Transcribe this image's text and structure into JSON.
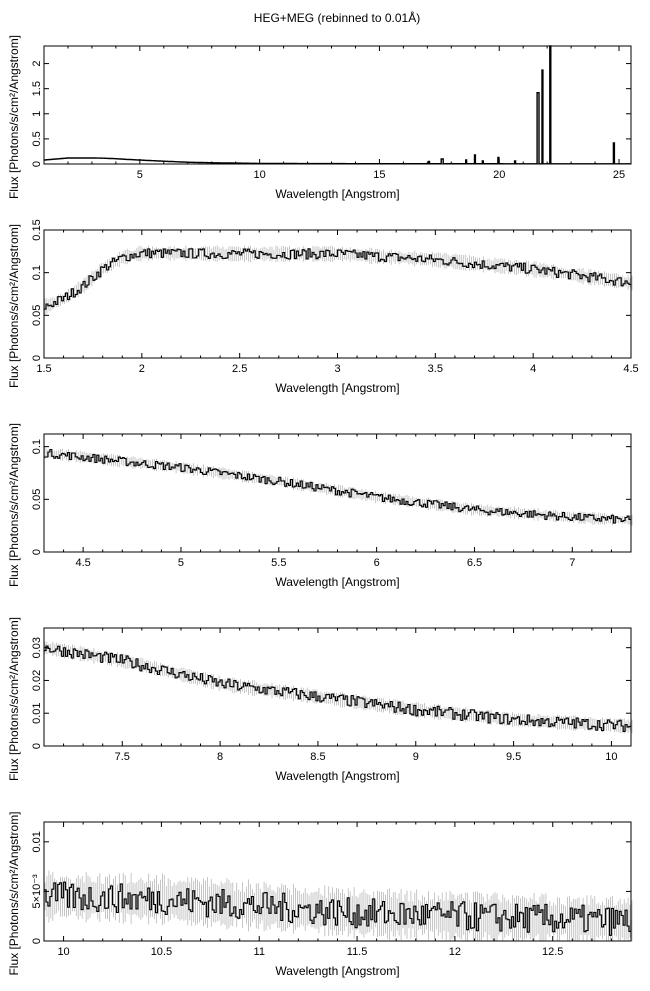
{
  "figure": {
    "title": "HEG+MEG (rebinned to 0.01Å)"
  },
  "chart_data": [
    {
      "type": "histogram",
      "xlabel": "Wavelength [Angstrom]",
      "ylabel": "Flux [Photons/s/cm²/Angstrom]",
      "xlim": [
        1.0,
        25.5
      ],
      "ylim": [
        0,
        2.35
      ],
      "xticks": [
        5,
        10,
        15,
        20,
        25
      ],
      "yticks": [
        0,
        0.5,
        1,
        1.5,
        2
      ],
      "continuum": [
        [
          1.0,
          0.08
        ],
        [
          1.5,
          0.1
        ],
        [
          2.0,
          0.12
        ],
        [
          2.5,
          0.12
        ],
        [
          3.0,
          0.12
        ],
        [
          3.5,
          0.115
        ],
        [
          4.0,
          0.105
        ],
        [
          4.5,
          0.09
        ],
        [
          5.0,
          0.078
        ],
        [
          6.0,
          0.055
        ],
        [
          7.0,
          0.035
        ],
        [
          8.0,
          0.025
        ],
        [
          9.0,
          0.018
        ],
        [
          10.0,
          0.012
        ],
        [
          12.0,
          0.008
        ],
        [
          15.0,
          0.006
        ],
        [
          20.0,
          0.005
        ],
        [
          25.5,
          0.004
        ]
      ],
      "lines": [
        {
          "x": 17.05,
          "y": 0.05
        },
        {
          "x": 17.6,
          "y": 0.1
        },
        {
          "x": 18.6,
          "y": 0.08
        },
        {
          "x": 18.97,
          "y": 0.18
        },
        {
          "x": 19.3,
          "y": 0.06
        },
        {
          "x": 19.95,
          "y": 0.13
        },
        {
          "x": 20.65,
          "y": 0.06
        },
        {
          "x": 21.6,
          "y": 1.42
        },
        {
          "x": 21.8,
          "y": 1.87
        },
        {
          "x": 22.1,
          "y": 2.35
        },
        {
          "x": 24.78,
          "y": 0.42
        }
      ]
    },
    {
      "type": "histogram",
      "xlabel": "Wavelength [Angstrom]",
      "ylabel": "Flux [Photons/s/cm²/Angstrom]",
      "xlim": [
        1.5,
        4.5
      ],
      "ylim": [
        0,
        0.15
      ],
      "xticks": [
        1.5,
        2,
        2.5,
        3,
        3.5,
        4,
        4.5
      ],
      "yticks": [
        0,
        0.05,
        0.1,
        0.15
      ],
      "continuum": [
        [
          1.5,
          0.06
        ],
        [
          1.6,
          0.07
        ],
        [
          1.7,
          0.085
        ],
        [
          1.8,
          0.105
        ],
        [
          1.9,
          0.118
        ],
        [
          2.0,
          0.123
        ],
        [
          2.5,
          0.122
        ],
        [
          3.0,
          0.122
        ],
        [
          3.5,
          0.115
        ],
        [
          4.0,
          0.104
        ],
        [
          4.5,
          0.088
        ]
      ],
      "noise": 0.006,
      "err": 0.008
    },
    {
      "type": "histogram",
      "xlabel": "Wavelength [Angstrom]",
      "ylabel": "Flux [Photons/s/cm²/Angstrom]",
      "xlim": [
        4.3,
        7.3
      ],
      "ylim": [
        0,
        0.112
      ],
      "xticks": [
        4.5,
        5,
        5.5,
        6,
        6.5,
        7
      ],
      "yticks": [
        0,
        0.05,
        0.1
      ],
      "continuum": [
        [
          4.3,
          0.094
        ],
        [
          4.5,
          0.09
        ],
        [
          5.0,
          0.08
        ],
        [
          5.5,
          0.067
        ],
        [
          6.0,
          0.052
        ],
        [
          6.5,
          0.04
        ],
        [
          7.0,
          0.033
        ],
        [
          7.3,
          0.03
        ]
      ],
      "noise": 0.004,
      "err": 0.005
    },
    {
      "type": "histogram",
      "xlabel": "Wavelength [Angstrom]",
      "ylabel": "Flux [Photons/s/cm²/Angstrom]",
      "xlim": [
        7.1,
        10.1
      ],
      "ylim": [
        0,
        0.036
      ],
      "xticks": [
        7.5,
        8,
        8.5,
        9,
        9.5,
        10
      ],
      "yticks": [
        0,
        0.01,
        0.02,
        0.03
      ],
      "continuum": [
        [
          7.1,
          0.03
        ],
        [
          7.5,
          0.026
        ],
        [
          8.0,
          0.019
        ],
        [
          8.5,
          0.015
        ],
        [
          9.0,
          0.011
        ],
        [
          9.5,
          0.008
        ],
        [
          10.1,
          0.006
        ]
      ],
      "noise": 0.0018,
      "err": 0.002
    },
    {
      "type": "histogram",
      "xlabel": "Wavelength [Angstrom]",
      "ylabel": "Flux [Photons/s/cm²/Angstrom]",
      "xlim": [
        9.9,
        12.9
      ],
      "ylim": [
        0,
        0.012
      ],
      "xticks": [
        10,
        10.5,
        11,
        11.5,
        12,
        12.5
      ],
      "yticks": [
        0,
        0.005,
        0.01
      ],
      "ytick_labels": [
        "0",
        "5×10⁻³",
        "0.01"
      ],
      "continuum": [
        [
          9.9,
          0.0045
        ],
        [
          10.5,
          0.0042
        ],
        [
          11.0,
          0.0035
        ],
        [
          11.5,
          0.0028
        ],
        [
          12.0,
          0.0025
        ],
        [
          12.5,
          0.0022
        ],
        [
          12.9,
          0.002
        ]
      ],
      "noise": 0.0015,
      "err": 0.0022
    }
  ]
}
